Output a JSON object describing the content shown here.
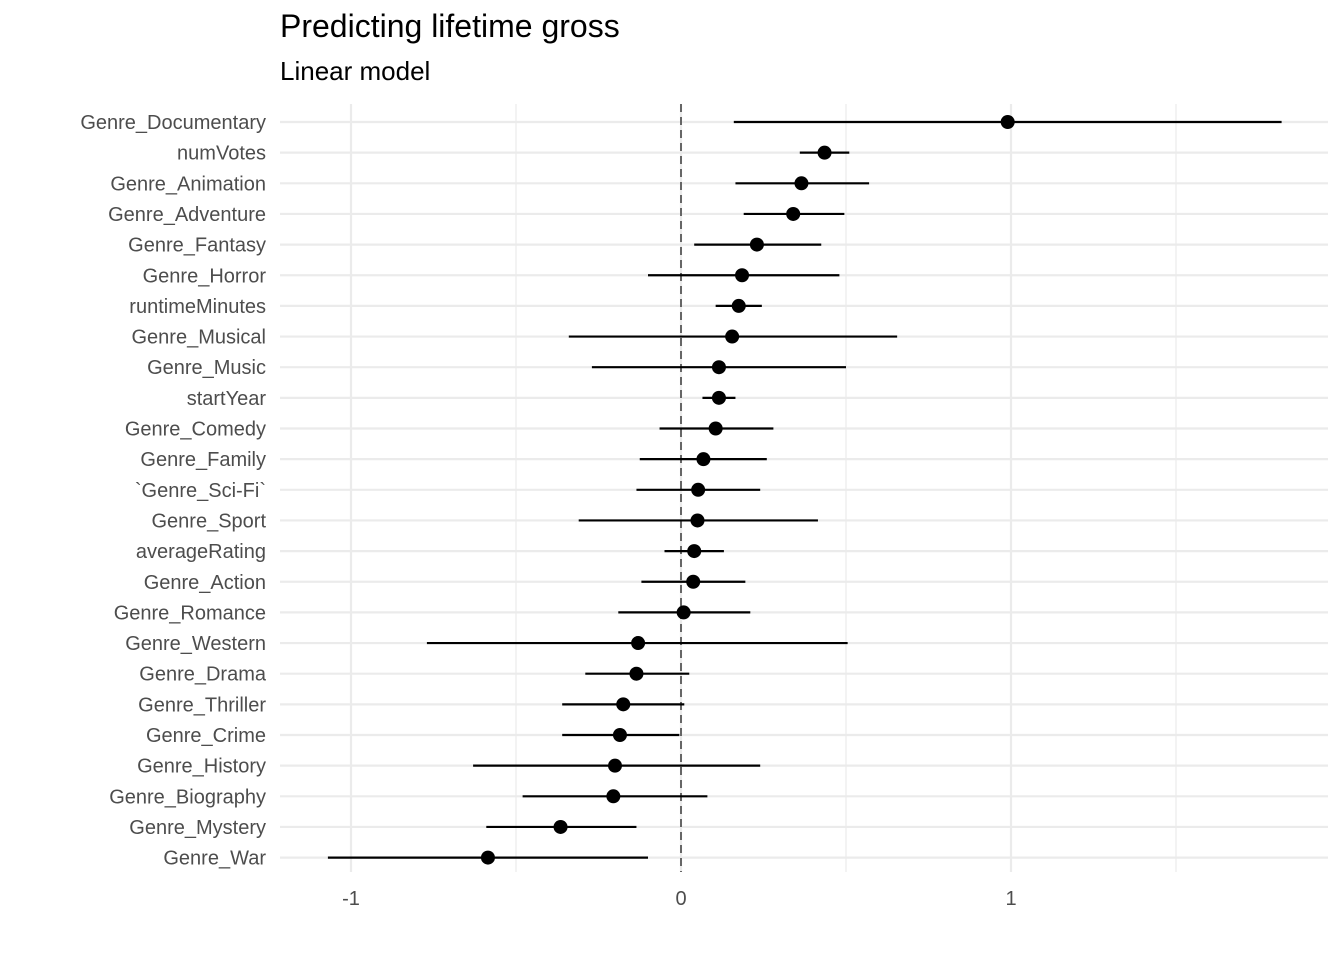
{
  "chart_data": {
    "type": "scatter",
    "title": "Predicting lifetime gross",
    "subtitle": "Linear model",
    "xlabel": "",
    "ylabel": "",
    "xlim": [
      -1.2,
      1.95
    ],
    "x_ticks": [
      -1,
      0,
      1
    ],
    "x_tick_labels": [
      "-1",
      "0",
      "1"
    ],
    "reference_line": {
      "x": 0,
      "style": "dashed"
    },
    "grid": true,
    "legend": "none",
    "colors": {
      "point": "#000000",
      "errorbar": "#000000",
      "grid": "#ebebeb",
      "refline": "#666666",
      "text": "#4d4d4d"
    },
    "terms": [
      {
        "term": "Genre_Documentary",
        "estimate": 0.99,
        "low": 0.16,
        "high": 1.82
      },
      {
        "term": "numVotes",
        "estimate": 0.435,
        "low": 0.36,
        "high": 0.51
      },
      {
        "term": "Genre_Animation",
        "estimate": 0.365,
        "low": 0.165,
        "high": 0.57
      },
      {
        "term": "Genre_Adventure",
        "estimate": 0.34,
        "low": 0.19,
        "high": 0.495
      },
      {
        "term": "Genre_Fantasy",
        "estimate": 0.23,
        "low": 0.04,
        "high": 0.425
      },
      {
        "term": "Genre_Horror",
        "estimate": 0.185,
        "low": -0.1,
        "high": 0.48
      },
      {
        "term": "runtimeMinutes",
        "estimate": 0.175,
        "low": 0.105,
        "high": 0.245
      },
      {
        "term": "Genre_Musical",
        "estimate": 0.155,
        "low": -0.34,
        "high": 0.655
      },
      {
        "term": "Genre_Music",
        "estimate": 0.115,
        "low": -0.27,
        "high": 0.5
      },
      {
        "term": "startYear",
        "estimate": 0.115,
        "low": 0.065,
        "high": 0.165
      },
      {
        "term": "Genre_Comedy",
        "estimate": 0.105,
        "low": -0.065,
        "high": 0.28
      },
      {
        "term": "Genre_Family",
        "estimate": 0.068,
        "low": -0.125,
        "high": 0.26
      },
      {
        "term": "`Genre_Sci-Fi`",
        "estimate": 0.052,
        "low": -0.135,
        "high": 0.24
      },
      {
        "term": "Genre_Sport",
        "estimate": 0.05,
        "low": -0.31,
        "high": 0.415
      },
      {
        "term": "averageRating",
        "estimate": 0.04,
        "low": -0.05,
        "high": 0.13
      },
      {
        "term": "Genre_Action",
        "estimate": 0.037,
        "low": -0.12,
        "high": 0.195
      },
      {
        "term": "Genre_Romance",
        "estimate": 0.008,
        "low": -0.19,
        "high": 0.21
      },
      {
        "term": "Genre_Western",
        "estimate": -0.13,
        "low": -0.77,
        "high": 0.505
      },
      {
        "term": "Genre_Drama",
        "estimate": -0.135,
        "low": -0.29,
        "high": 0.025
      },
      {
        "term": "Genre_Thriller",
        "estimate": -0.175,
        "low": -0.36,
        "high": 0.01
      },
      {
        "term": "Genre_Crime",
        "estimate": -0.185,
        "low": -0.36,
        "high": -0.005
      },
      {
        "term": "Genre_History",
        "estimate": -0.2,
        "low": -0.63,
        "high": 0.24
      },
      {
        "term": "Genre_Biography",
        "estimate": -0.205,
        "low": -0.48,
        "high": 0.08
      },
      {
        "term": "Genre_Mystery",
        "estimate": -0.365,
        "low": -0.59,
        "high": -0.135
      },
      {
        "term": "Genre_War",
        "estimate": -0.585,
        "low": -1.07,
        "high": -0.1
      }
    ]
  }
}
